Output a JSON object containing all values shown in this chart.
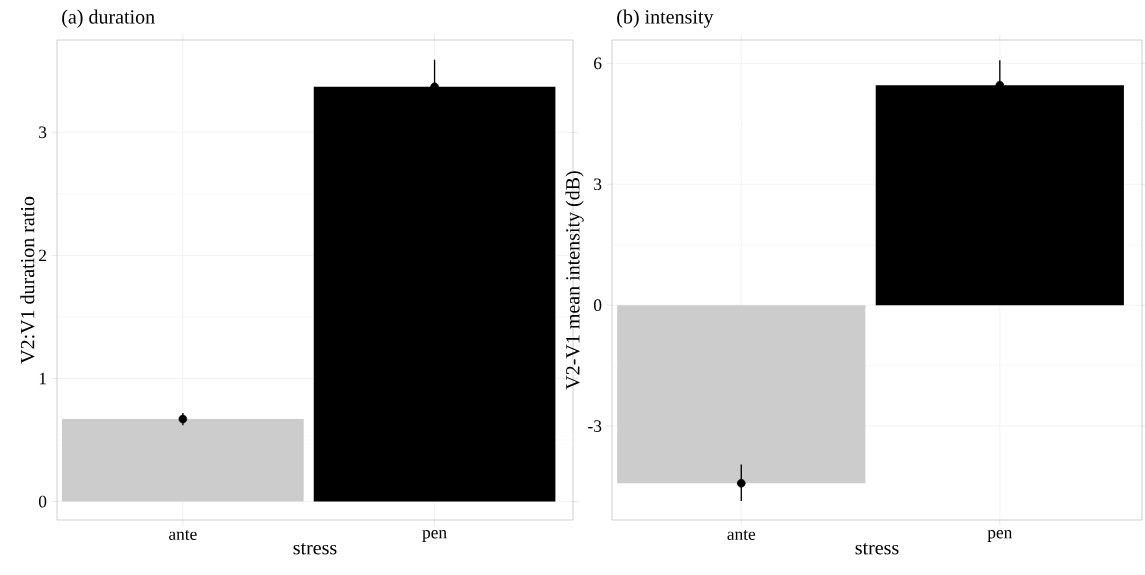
{
  "chart_data": [
    {
      "type": "bar",
      "title": "(a) duration",
      "xlabel": "stress",
      "ylabel": "V2:V1 duration ratio",
      "categories": [
        "ante",
        "pen"
      ],
      "ylim": [
        -0.15,
        3.75
      ],
      "yticks": [
        0,
        1,
        2,
        3
      ],
      "grid": true,
      "series": [
        {
          "type": "bar",
          "values": [
            0.67,
            3.37
          ],
          "colors": [
            "#cccccc",
            "#000000"
          ]
        },
        {
          "type": "scatter",
          "x": [
            "ante",
            "pen"
          ],
          "values": [
            0.67,
            3.37
          ],
          "color": "#000000",
          "marker": "circle",
          "errors": [
            [
              0.62,
              0.72
            ],
            [
              3.37,
              3.59
            ]
          ]
        }
      ]
    },
    {
      "type": "bar",
      "title": "(b) intensity",
      "xlabel": "stress",
      "ylabel": "V2-V1 mean intensity (dB)",
      "categories": [
        "ante",
        "pen"
      ],
      "ylim": [
        -5.33,
        6.58
      ],
      "yticks": [
        -3,
        0,
        3,
        6
      ],
      "grid": true,
      "series": [
        {
          "type": "bar",
          "values": [
            -4.42,
            5.46
          ],
          "colors": [
            "#cccccc",
            "#000000"
          ]
        },
        {
          "type": "scatter",
          "x": [
            "ante",
            "pen"
          ],
          "values": [
            -4.42,
            5.46
          ],
          "color": "#000000",
          "marker": "circle",
          "errors": [
            [
              -4.86,
              -3.95
            ],
            [
              5.46,
              6.08
            ]
          ]
        }
      ]
    }
  ]
}
